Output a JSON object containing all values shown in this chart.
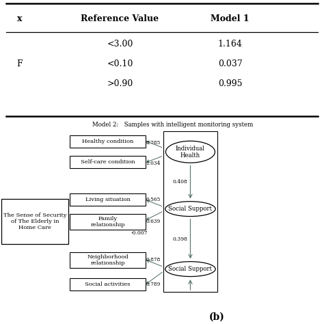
{
  "table": {
    "col_labels": [
      "x",
      "Reference Value",
      "Model 1"
    ],
    "row_label": "F",
    "ref_values": [
      "<3.00",
      "<0.10",
      ">0.90"
    ],
    "model1_values": [
      "1.164",
      "0.037",
      "0.995"
    ]
  },
  "diagram": {
    "title": "Model 2:   Samples with intelligent monitoring system",
    "left_box_label": "The Sense of Security\nof The Elderly in\nHome Care",
    "boxes": [
      "Healthy condition",
      "Self-care condition",
      "Living situation",
      "Family\nrelationship",
      "Neighborhood\nrelationship",
      "Social activities"
    ],
    "ellipses": [
      "Individual\nHealth",
      "Social Support",
      "Social Support"
    ],
    "path_labels": [
      "0.785",
      "1.034",
      "0.565",
      "0.639",
      "0.878",
      "0.789"
    ],
    "vert_labels": [
      "0.408",
      "-0.007",
      "0.398"
    ],
    "label_b": "(b)"
  },
  "bg_color": "#ffffff",
  "arrow_color": "#607b70",
  "red_color": "#cc0000"
}
